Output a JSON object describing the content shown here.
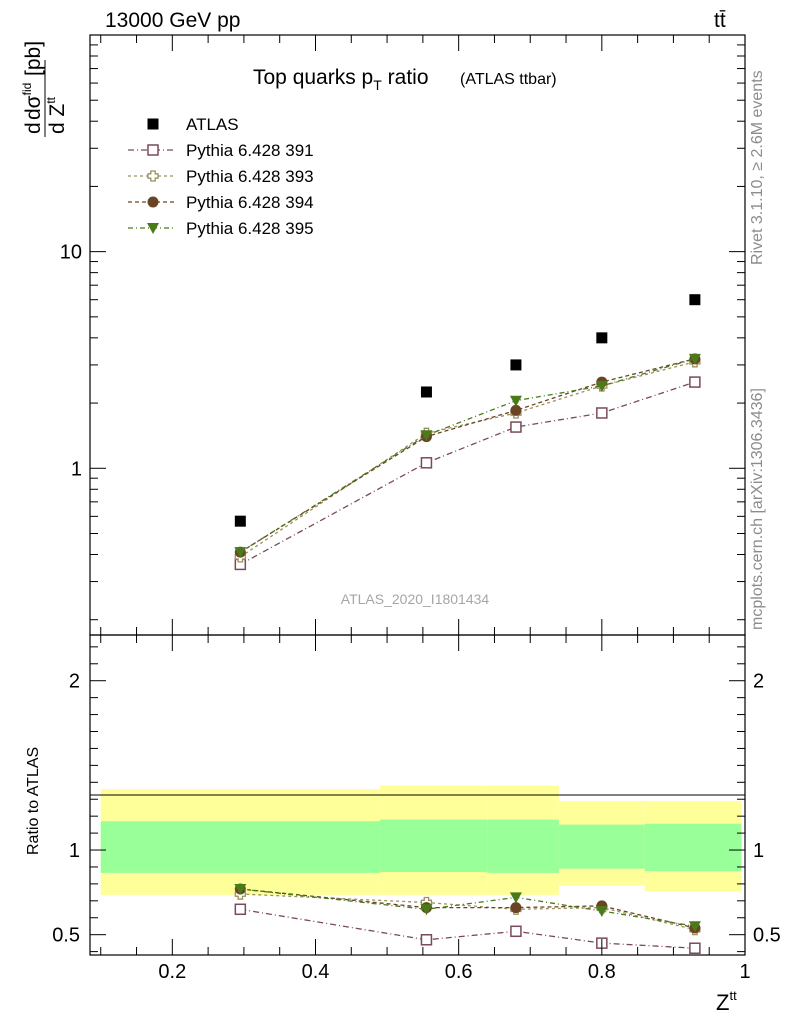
{
  "header": {
    "energy_label": "13000 GeV pp",
    "process_label": "tt̄",
    "side_top": "Rivet 3.1.10, ≥ 2.6M events",
    "side_bottom": "mcplots.cern.ch [arXiv:1306.3436]"
  },
  "chart_data": {
    "type": "scatter",
    "title_main": "Top quarks p",
    "title_sub": "T",
    "title_main2": " ratio",
    "title_small": "(ATLAS ttbar)",
    "watermark": "ATLAS_2020_I1801434",
    "xlabel": "Z",
    "xlabel_sup": "tt",
    "ylabel_top": "dσ",
    "ylabel_top_sup": "fid",
    "ylabel_bottom": "d Z",
    "ylabel_bottom_sup": "tt",
    "ylabel_unit": "[pb]",
    "ratio_ylabel": "Ratio to ATLAS",
    "xlim": [
      0.085,
      1.0
    ],
    "ylim_main": [
      0.17,
      100
    ],
    "ylog": true,
    "ylim_ratio": [
      0.38,
      2.27
    ],
    "x_ticks": [
      "0.2",
      "0.4",
      "0.6",
      "0.8",
      "1"
    ],
    "main_y_ticks": [
      "1",
      "10"
    ],
    "ratio_y_ticks": [
      "0.5",
      "1",
      "2"
    ],
    "x": [
      0.295,
      0.555,
      0.68,
      0.8,
      0.93
    ],
    "data": {
      "name": "ATLAS",
      "values": [
        0.57,
        2.25,
        3.0,
        4.0,
        6.0
      ]
    },
    "series": [
      {
        "name": "Pythia 6.428 391",
        "color": "#7a4a5a",
        "marker": "open-square",
        "values": [
          0.36,
          1.06,
          1.55,
          1.8,
          2.5
        ]
      },
      {
        "name": "Pythia 6.428 393",
        "color": "#9a9060",
        "marker": "open-cross",
        "values": [
          0.39,
          1.45,
          1.8,
          2.4,
          3.1
        ]
      },
      {
        "name": "Pythia 6.428 394",
        "color": "#6a4424",
        "marker": "filled-circle",
        "values": [
          0.41,
          1.4,
          1.85,
          2.5,
          3.2
        ]
      },
      {
        "name": "Pythia 6.428 395",
        "color": "#4a7a1a",
        "marker": "filled-triangle",
        "values": [
          0.41,
          1.42,
          2.05,
          2.4,
          3.2
        ]
      }
    ],
    "ratio_series": [
      [
        0.65,
        0.47,
        0.52,
        0.45,
        0.42
      ],
      [
        0.74,
        0.69,
        0.65,
        0.66,
        0.53
      ],
      [
        0.77,
        0.66,
        0.66,
        0.67,
        0.54
      ],
      [
        0.77,
        0.65,
        0.72,
        0.64,
        0.55
      ]
    ],
    "bands": [
      {
        "xlo": 0.1,
        "xhi": 0.49,
        "yellow": [
          0.735,
          1.36
        ],
        "green": [
          0.865,
          1.17
        ]
      },
      {
        "xlo": 0.49,
        "xhi": 0.64,
        "yellow": [
          0.735,
          1.38
        ],
        "green": [
          0.87,
          1.18
        ]
      },
      {
        "xlo": 0.64,
        "xhi": 0.74,
        "yellow": [
          0.735,
          1.38
        ],
        "green": [
          0.865,
          1.18
        ]
      },
      {
        "xlo": 0.74,
        "xhi": 0.86,
        "yellow": [
          0.79,
          1.29
        ],
        "green": [
          0.89,
          1.15
        ]
      },
      {
        "xlo": 0.86,
        "xhi": 0.995,
        "yellow": [
          0.755,
          1.29
        ],
        "green": [
          0.875,
          1.155
        ]
      }
    ]
  }
}
